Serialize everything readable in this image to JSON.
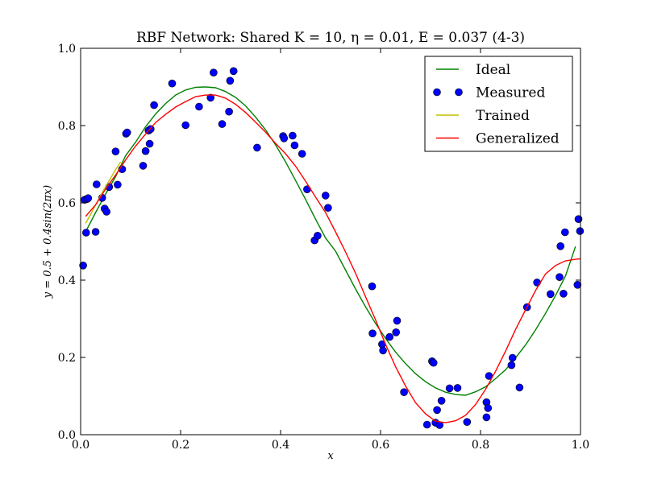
{
  "chart_data": {
    "type": "line",
    "title": "RBF Network: Shared K = 10, η = 0.01, E = 0.037 (4-3)",
    "xlabel": "x",
    "ylabel": "y = 0.5 + 0.4sin(2πx)",
    "xlim": [
      0.0,
      1.0
    ],
    "ylim": [
      0.0,
      1.0
    ],
    "xticks": [
      "0.0",
      "0.2",
      "0.4",
      "0.6",
      "0.8",
      "1.0"
    ],
    "yticks": [
      "0.0",
      "0.2",
      "0.4",
      "0.6",
      "0.8",
      "1.0"
    ],
    "grid": false,
    "legend_position": "top-right",
    "series": [
      {
        "name": "Ideal",
        "kind": "line",
        "color": "#008000",
        "x": [
          0.01,
          0.03,
          0.05,
          0.07,
          0.09,
          0.11,
          0.13,
          0.15,
          0.17,
          0.19,
          0.21,
          0.23,
          0.25,
          0.27,
          0.29,
          0.31,
          0.33,
          0.35,
          0.37,
          0.39,
          0.41,
          0.43,
          0.45,
          0.47,
          0.49,
          0.51,
          0.53,
          0.55,
          0.57,
          0.59,
          0.61,
          0.63,
          0.65,
          0.67,
          0.69,
          0.71,
          0.73,
          0.75,
          0.77,
          0.79,
          0.81,
          0.83,
          0.85,
          0.87,
          0.89,
          0.91,
          0.93,
          0.95,
          0.97,
          0.99
        ],
        "y": [
          0.525,
          0.575,
          0.623,
          0.668,
          0.722,
          0.757,
          0.797,
          0.83,
          0.857,
          0.879,
          0.892,
          0.899,
          0.9,
          0.898,
          0.888,
          0.873,
          0.851,
          0.822,
          0.789,
          0.75,
          0.706,
          0.658,
          0.609,
          0.558,
          0.509,
          0.475,
          0.426,
          0.377,
          0.331,
          0.288,
          0.249,
          0.214,
          0.184,
          0.158,
          0.137,
          0.121,
          0.11,
          0.104,
          0.102,
          0.111,
          0.124,
          0.145,
          0.168,
          0.199,
          0.232,
          0.271,
          0.314,
          0.36,
          0.411,
          0.487
        ]
      },
      {
        "name": "Measured",
        "kind": "scatter",
        "color": "#0000ff",
        "x": [
          0.005,
          0.008,
          0.011,
          0.013,
          0.015,
          0.03,
          0.032,
          0.043,
          0.048,
          0.052,
          0.057,
          0.07,
          0.074,
          0.083,
          0.091,
          0.093,
          0.125,
          0.13,
          0.136,
          0.138,
          0.14,
          0.147,
          0.183,
          0.21,
          0.237,
          0.26,
          0.266,
          0.283,
          0.297,
          0.299,
          0.306,
          0.353,
          0.405,
          0.407,
          0.424,
          0.428,
          0.443,
          0.453,
          0.468,
          0.474,
          0.49,
          0.495,
          0.583,
          0.584,
          0.603,
          0.605,
          0.618,
          0.631,
          0.633,
          0.647,
          0.693,
          0.703,
          0.706,
          0.71,
          0.713,
          0.718,
          0.722,
          0.738,
          0.754,
          0.773,
          0.812,
          0.812,
          0.815,
          0.817,
          0.862,
          0.864,
          0.878,
          0.893,
          0.913,
          0.94,
          0.958,
          0.96,
          0.966,
          0.969,
          0.994,
          0.996,
          0.999
        ],
        "y": [
          0.438,
          0.608,
          0.523,
          0.61,
          0.612,
          0.525,
          0.648,
          0.613,
          0.585,
          0.577,
          0.641,
          0.733,
          0.647,
          0.687,
          0.779,
          0.782,
          0.696,
          0.734,
          0.787,
          0.753,
          0.791,
          0.853,
          0.909,
          0.801,
          0.849,
          0.872,
          0.937,
          0.804,
          0.836,
          0.916,
          0.941,
          0.743,
          0.773,
          0.767,
          0.774,
          0.749,
          0.727,
          0.635,
          0.503,
          0.515,
          0.619,
          0.587,
          0.384,
          0.262,
          0.234,
          0.218,
          0.253,
          0.265,
          0.295,
          0.11,
          0.026,
          0.19,
          0.186,
          0.031,
          0.064,
          0.025,
          0.088,
          0.12,
          0.121,
          0.033,
          0.045,
          0.084,
          0.069,
          0.152,
          0.18,
          0.199,
          0.122,
          0.33,
          0.394,
          0.364,
          0.408,
          0.488,
          0.365,
          0.524,
          0.388,
          0.558,
          0.527
        ]
      },
      {
        "name": "Trained",
        "kind": "line",
        "color": "#bfbf00",
        "x": [
          0.01,
          0.02,
          0.03,
          0.04,
          0.05,
          0.06,
          0.07,
          0.08
        ],
        "y": [
          0.547,
          0.57,
          0.595,
          0.619,
          0.642,
          0.664,
          0.686,
          0.706
        ]
      },
      {
        "name": "Generalized",
        "kind": "line",
        "color": "#ff0000",
        "x": [
          0.01,
          0.03,
          0.05,
          0.07,
          0.09,
          0.11,
          0.13,
          0.15,
          0.17,
          0.19,
          0.21,
          0.23,
          0.25,
          0.27,
          0.29,
          0.31,
          0.33,
          0.35,
          0.37,
          0.39,
          0.41,
          0.43,
          0.45,
          0.47,
          0.49,
          0.51,
          0.53,
          0.55,
          0.57,
          0.59,
          0.61,
          0.63,
          0.65,
          0.67,
          0.69,
          0.71,
          0.73,
          0.75,
          0.77,
          0.79,
          0.81,
          0.83,
          0.85,
          0.87,
          0.89,
          0.91,
          0.93,
          0.95,
          0.97,
          0.99,
          1.0
        ],
        "y": [
          0.565,
          0.595,
          0.636,
          0.672,
          0.711,
          0.747,
          0.778,
          0.808,
          0.829,
          0.848,
          0.862,
          0.875,
          0.879,
          0.879,
          0.871,
          0.855,
          0.834,
          0.809,
          0.783,
          0.754,
          0.727,
          0.695,
          0.656,
          0.615,
          0.575,
          0.525,
          0.473,
          0.418,
          0.357,
          0.297,
          0.234,
          0.176,
          0.126,
          0.083,
          0.054,
          0.035,
          0.031,
          0.036,
          0.05,
          0.078,
          0.117,
          0.164,
          0.216,
          0.272,
          0.323,
          0.373,
          0.416,
          0.438,
          0.45,
          0.454,
          0.455
        ]
      }
    ]
  }
}
